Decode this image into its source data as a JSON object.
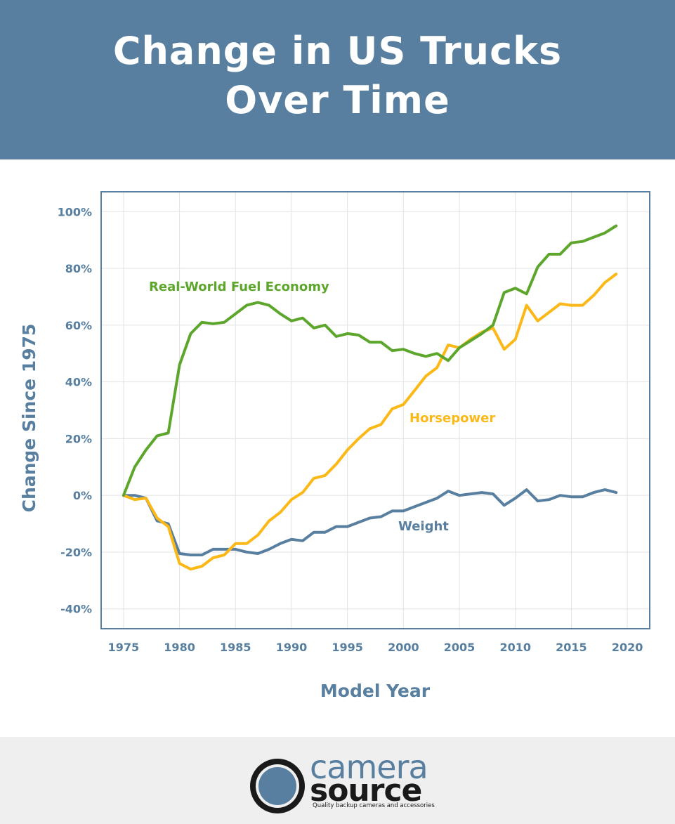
{
  "header": {
    "title_line1": "Change in US Trucks",
    "title_line2": "Over Time"
  },
  "colors": {
    "header_bg": "#587f9f",
    "axis": "#587f9f",
    "fuel_economy": "#5da62c",
    "horsepower": "#fbb817",
    "weight": "#587f9f",
    "footer_bg": "#efefef"
  },
  "chart_data": {
    "type": "line",
    "xlabel": "Model Year",
    "ylabel": "Change Since 1975",
    "xlim": [
      1973,
      2022
    ],
    "ylim": [
      -47,
      107
    ],
    "x_ticks": [
      1975,
      1980,
      1985,
      1990,
      1995,
      2000,
      2005,
      2010,
      2015,
      2020
    ],
    "y_ticks": [
      100,
      80,
      60,
      40,
      20,
      0,
      -20,
      -40
    ],
    "y_tick_labels": [
      "100%",
      "80%",
      "60%",
      "40%",
      "20%",
      "0%",
      "-20%",
      "-40%"
    ],
    "grid": true,
    "x": [
      1975,
      1976,
      1977,
      1978,
      1979,
      1980,
      1981,
      1982,
      1983,
      1984,
      1985,
      1986,
      1987,
      1988,
      1989,
      1990,
      1991,
      1992,
      1993,
      1994,
      1995,
      1996,
      1997,
      1998,
      1999,
      2000,
      2001,
      2002,
      2003,
      2004,
      2005,
      2006,
      2007,
      2008,
      2009,
      2010,
      2011,
      2012,
      2013,
      2014,
      2015,
      2016,
      2017,
      2018,
      2019
    ],
    "series": [
      {
        "name": "Real-World Fuel Economy",
        "values": [
          0,
          10,
          16,
          21,
          22,
          46,
          57,
          61,
          60.5,
          61,
          64,
          67,
          68,
          67,
          64,
          61.5,
          62.5,
          59,
          60,
          56,
          57,
          56.5,
          54,
          54,
          51,
          51.5,
          50,
          49,
          50,
          47.5,
          52,
          54.5,
          57,
          60,
          71.5,
          73,
          71,
          80.5,
          85,
          85,
          89,
          89.5,
          91,
          92.5,
          95
        ]
      },
      {
        "name": "Horsepower",
        "values": [
          0,
          -1.5,
          -1,
          -8,
          -11,
          -24,
          -26,
          -25,
          -22,
          -21,
          -17,
          -17,
          -14,
          -9,
          -6,
          -1.5,
          1,
          6,
          7,
          11,
          16,
          20,
          23.5,
          25,
          30.5,
          32,
          37,
          42,
          45,
          53,
          52,
          55,
          57.5,
          59,
          51.5,
          55,
          67,
          61.5,
          64.5,
          67.5,
          67,
          67,
          70.5,
          75,
          78
        ]
      },
      {
        "name": "Weight",
        "values": [
          0,
          0,
          -1,
          -9,
          -10,
          -20.5,
          -21,
          -21,
          -19,
          -19,
          -19,
          -20,
          -20.5,
          -19,
          -17,
          -15.5,
          -16,
          -13,
          -13,
          -11,
          -11,
          -9.5,
          -8,
          -7.5,
          -5.5,
          -5.5,
          -4,
          -2.5,
          -1,
          1.5,
          0,
          0.5,
          1,
          0.5,
          -3.5,
          -1,
          2,
          -2,
          -1.5,
          0,
          -0.5,
          -0.5,
          1,
          2,
          1
        ]
      }
    ]
  },
  "footer": {
    "logo_word1": "camera",
    "logo_word2": "source",
    "tagline": "Quality backup cameras and accessories"
  }
}
